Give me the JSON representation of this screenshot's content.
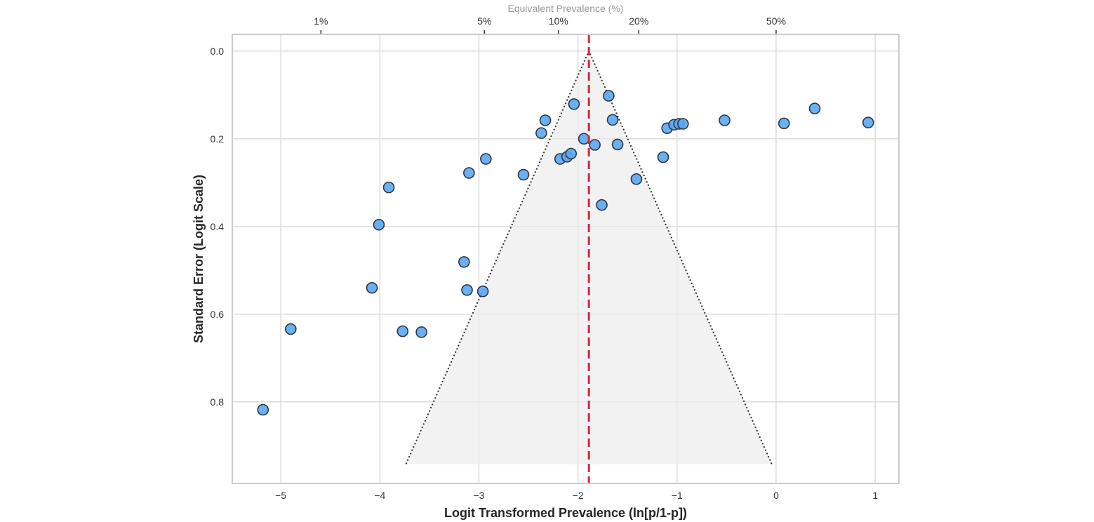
{
  "chart_data": {
    "type": "scatter",
    "subtype": "funnel-plot",
    "title": "",
    "xlabel": "Logit Transformed Prevalence (ln[p/1-p])",
    "ylabel": "Standard Error (Logit Scale)",
    "top_axis_label": "Equivalent Prevalence (%)",
    "xlim": [
      -5.49,
      1.24
    ],
    "ylim": [
      0.986,
      -0.038
    ],
    "y_inverted": true,
    "grid": true,
    "x_ticks": [
      -5,
      -4,
      -3,
      -2,
      -1,
      0,
      1
    ],
    "x_tick_labels": [
      "−5",
      "−4",
      "−3",
      "−2",
      "−1",
      "0",
      "1"
    ],
    "y_ticks": [
      0.0,
      0.2,
      0.4,
      0.6,
      0.8
    ],
    "y_tick_labels": [
      "0.0",
      "0.2",
      "0.4",
      "0.6",
      "0.8"
    ],
    "top_ticks": [
      {
        "prevalence": 0.01,
        "label": "1%"
      },
      {
        "prevalence": 0.05,
        "label": "5%"
      },
      {
        "prevalence": 0.1,
        "label": "10%"
      },
      {
        "prevalence": 0.2,
        "label": "20%"
      },
      {
        "prevalence": 0.5,
        "label": "50%"
      }
    ],
    "pooled_estimate": -1.89,
    "funnel": {
      "center": -1.89,
      "z": 1.96,
      "se_max": 0.942
    },
    "colors": {
      "marker_fill": "#5aa7f2",
      "marker_edge": "#2a3644",
      "pooled_line": "#d62839",
      "funnel_fill": "#f0f0f0",
      "funnel_edge": "#333333",
      "grid": "#dddddd",
      "frame": "#cccccc"
    },
    "points": [
      {
        "x": -5.18,
        "y": 0.818
      },
      {
        "x": -4.9,
        "y": 0.634
      },
      {
        "x": -4.08,
        "y": 0.54
      },
      {
        "x": -4.01,
        "y": 0.396
      },
      {
        "x": -3.91,
        "y": 0.311
      },
      {
        "x": -3.77,
        "y": 0.639
      },
      {
        "x": -3.58,
        "y": 0.641
      },
      {
        "x": -3.15,
        "y": 0.481
      },
      {
        "x": -3.12,
        "y": 0.545
      },
      {
        "x": -2.96,
        "y": 0.548
      },
      {
        "x": -3.1,
        "y": 0.278
      },
      {
        "x": -2.93,
        "y": 0.246
      },
      {
        "x": -2.55,
        "y": 0.282
      },
      {
        "x": -2.37,
        "y": 0.187
      },
      {
        "x": -2.33,
        "y": 0.158
      },
      {
        "x": -2.18,
        "y": 0.246
      },
      {
        "x": -2.11,
        "y": 0.241
      },
      {
        "x": -2.07,
        "y": 0.234
      },
      {
        "x": -2.04,
        "y": 0.121
      },
      {
        "x": -1.94,
        "y": 0.2
      },
      {
        "x": -1.83,
        "y": 0.214
      },
      {
        "x": -1.76,
        "y": 0.351
      },
      {
        "x": -1.69,
        "y": 0.102
      },
      {
        "x": -1.65,
        "y": 0.157
      },
      {
        "x": -1.6,
        "y": 0.213
      },
      {
        "x": -1.41,
        "y": 0.292
      },
      {
        "x": -1.14,
        "y": 0.242
      },
      {
        "x": -1.1,
        "y": 0.176
      },
      {
        "x": -1.03,
        "y": 0.168
      },
      {
        "x": -0.98,
        "y": 0.166
      },
      {
        "x": -0.94,
        "y": 0.166
      },
      {
        "x": -0.52,
        "y": 0.158
      },
      {
        "x": 0.08,
        "y": 0.165
      },
      {
        "x": 0.39,
        "y": 0.131
      },
      {
        "x": 0.93,
        "y": 0.163
      }
    ]
  }
}
